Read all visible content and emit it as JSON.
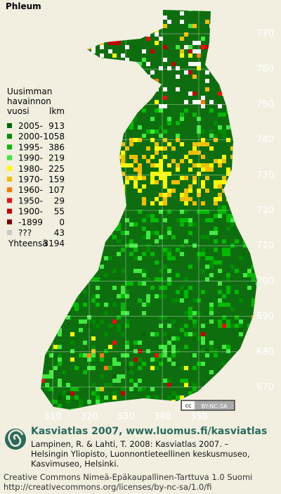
{
  "title": "Phleum",
  "legend": {
    "heading": [
      "Uusimman",
      "havainnon",
      "vuosi"
    ],
    "count_header": "lkm",
    "rows": [
      {
        "label": "2005-",
        "count": 913,
        "color": "#006400"
      },
      {
        "label": "2000-",
        "count": 1058,
        "color": "#008a00"
      },
      {
        "label": "1995-",
        "count": 386,
        "color": "#00b800"
      },
      {
        "label": "1990-",
        "count": 219,
        "color": "#40e840"
      },
      {
        "label": "1980-",
        "count": 225,
        "color": "#ffff00"
      },
      {
        "label": "1970-",
        "count": 159,
        "color": "#f0c000"
      },
      {
        "label": "1960-",
        "count": 107,
        "color": "#ff7a00"
      },
      {
        "label": "1950-",
        "count": 29,
        "color": "#e81010"
      },
      {
        "label": "1900-",
        "count": 55,
        "color": "#c00000"
      },
      {
        "label": "-1899",
        "count": 0,
        "color": "#800000"
      },
      {
        "label": "???",
        "count": 43,
        "color": "#c8c8c8"
      }
    ],
    "total_label": "Yhteensä",
    "total": 3194
  },
  "map": {
    "y_labels": [
      770,
      760,
      750,
      740,
      730,
      720,
      710,
      700,
      690,
      680,
      670
    ],
    "x_labels": [
      310,
      320,
      330,
      340,
      350
    ]
  },
  "badge": [
    "cc",
    "BY-NC-SA"
  ],
  "credit": {
    "title": "Kasviatlas 2007, www.luomus.fi/kasviatlas",
    "citation": [
      "Lampinen, R. & Lahti, T. 2008: Kasviatlas 2007. –",
      "Helsingin Yliopisto, Luonnontieteellinen keskusmuseo,",
      "Kasvimuseo, Helsinki."
    ]
  },
  "license": [
    "Creative Commons Nimeä-Epäkaupallinen-Tarttuva 1.0 Suomi",
    "http://creativecommons.org/licenses/by-nc-sa/1.0/fi"
  ]
}
